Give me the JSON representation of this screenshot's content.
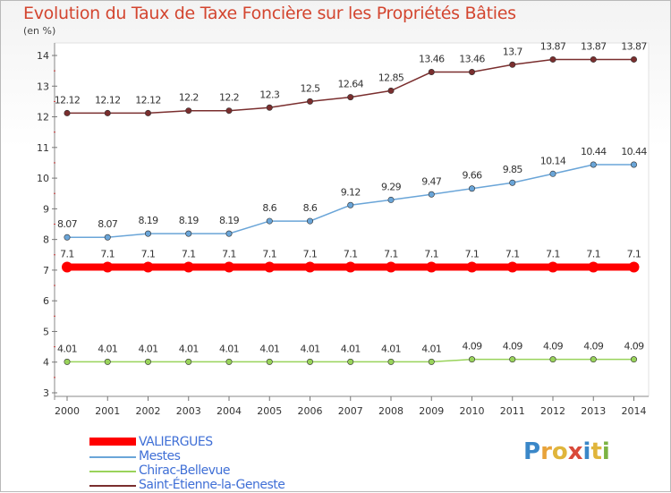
{
  "title": "Evolution du Taux de Taxe Foncière sur les Propriétés Bâties",
  "unit": "(en %)",
  "logo": {
    "text": "Proxiti",
    "letter_colors": [
      "#3a87c8",
      "#e8a33a",
      "#e0b53b",
      "#d94a3a",
      "#3a87c8",
      "#e0b53b",
      "#7cb342"
    ]
  },
  "chart_data": {
    "type": "line",
    "x": [
      2000,
      2001,
      2002,
      2003,
      2004,
      2005,
      2006,
      2007,
      2008,
      2009,
      2010,
      2011,
      2012,
      2013,
      2014
    ],
    "ylim": [
      3,
      14
    ],
    "yticks": [
      3,
      4,
      5,
      6,
      7,
      8,
      9,
      10,
      11,
      12,
      13,
      14
    ],
    "grid": false,
    "legend": "bottom-left",
    "series": [
      {
        "name": "VALIERGUES",
        "color": "#ff0000",
        "values": [
          7.1,
          7.1,
          7.1,
          7.1,
          7.1,
          7.1,
          7.1,
          7.1,
          7.1,
          7.1,
          7.1,
          7.1,
          7.1,
          7.1,
          7.1
        ],
        "labels": [
          "7.1",
          "7.1",
          "7.1",
          "7.1",
          "7.1",
          "7.1",
          "7.1",
          "7.1",
          "7.1",
          "7.1",
          "7.1",
          "7.1",
          "7.1",
          "7.1",
          "7.1"
        ],
        "thick": true
      },
      {
        "name": "Mestes",
        "color": "#6aa5d8",
        "values": [
          8.07,
          8.07,
          8.19,
          8.19,
          8.19,
          8.6,
          8.6,
          9.12,
          9.29,
          9.47,
          9.66,
          9.85,
          10.14,
          10.44,
          10.44
        ],
        "labels": [
          "8.07",
          "8.07",
          "8.19",
          "8.19",
          "8.19",
          "8.6",
          "8.6",
          "9.12",
          "9.29",
          "9.47",
          "9.66",
          "9.85",
          "10.14",
          "10.44",
          "10.44"
        ],
        "thick": false
      },
      {
        "name": "Chirac-Bellevue",
        "color": "#99d35b",
        "values": [
          4.01,
          4.01,
          4.01,
          4.01,
          4.01,
          4.01,
          4.01,
          4.01,
          4.01,
          4.01,
          4.09,
          4.09,
          4.09,
          4.09,
          4.09
        ],
        "labels": [
          "4.01",
          "4.01",
          "4.01",
          "4.01",
          "4.01",
          "4.01",
          "4.01",
          "4.01",
          "4.01",
          "4.01",
          "4.09",
          "4.09",
          "4.09",
          "4.09",
          "4.09"
        ],
        "thick": false
      },
      {
        "name": "Saint-Étienne-la-Geneste",
        "color": "#7a2e2e",
        "values": [
          12.12,
          12.12,
          12.12,
          12.2,
          12.2,
          12.3,
          12.5,
          12.64,
          12.85,
          13.46,
          13.46,
          13.7,
          13.87,
          13.87,
          13.87
        ],
        "labels": [
          "12.12",
          "12.12",
          "12.12",
          "12.2",
          "12.2",
          "12.3",
          "12.5",
          "12.64",
          "12.85",
          "13.46",
          "13.46",
          "13.7",
          "13.87",
          "13.87",
          "13.87"
        ],
        "thick": false
      }
    ]
  }
}
